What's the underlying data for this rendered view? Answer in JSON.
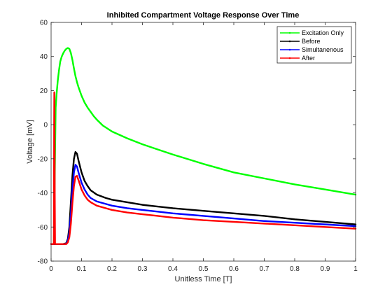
{
  "chart_data": {
    "type": "line",
    "title": "Inhibited Compartment Voltage Response Over Time",
    "xlabel": "Unitless Time [T]",
    "ylabel": "Voltage [mV]",
    "xlim": [
      0,
      1
    ],
    "ylim": [
      -80,
      60
    ],
    "xticks": [
      0,
      0.1,
      0.2,
      0.3,
      0.4,
      0.5,
      0.6,
      0.7,
      0.8,
      0.9,
      1
    ],
    "xtick_labels": [
      "0",
      "0.1",
      "0.2",
      "0.3",
      "0.4",
      "0.5",
      "0.6",
      "0.7",
      "0.8",
      "0.9",
      "1"
    ],
    "yticks": [
      -80,
      -60,
      -40,
      -20,
      0,
      20,
      40,
      60
    ],
    "ytick_labels": [
      "-80",
      "-60",
      "-40",
      "-20",
      "0",
      "20",
      "40",
      "60"
    ],
    "grid": false,
    "legend_position": "top-right",
    "series": [
      {
        "name": "Excitation Only",
        "color": "#00ff00",
        "x": [
          0,
          0.003,
          0.006,
          0.009,
          0.012,
          0.015,
          0.018,
          0.022,
          0.026,
          0.03,
          0.035,
          0.04,
          0.045,
          0.05,
          0.055,
          0.06,
          0.065,
          0.07,
          0.075,
          0.08,
          0.085,
          0.09,
          0.1,
          0.11,
          0.12,
          0.13,
          0.14,
          0.15,
          0.17,
          0.2,
          0.25,
          0.3,
          0.35,
          0.4,
          0.5,
          0.6,
          0.7,
          0.8,
          0.9,
          1.0
        ],
        "y": [
          -70,
          -70,
          -70,
          -70,
          -30,
          10,
          18,
          26,
          32,
          37,
          40,
          42,
          43.5,
          44.5,
          45,
          44.5,
          42,
          38,
          33,
          28.5,
          25,
          22,
          17,
          13,
          10,
          7.5,
          5,
          3,
          -0.5,
          -4,
          -8,
          -11.5,
          -14.5,
          -17.5,
          -23,
          -28,
          -31.5,
          -35,
          -38,
          -41
        ]
      },
      {
        "name": "Before",
        "color": "#000000",
        "x": [
          0,
          0.02,
          0.04,
          0.05,
          0.055,
          0.06,
          0.065,
          0.07,
          0.075,
          0.08,
          0.085,
          0.09,
          0.1,
          0.11,
          0.12,
          0.13,
          0.15,
          0.18,
          0.2,
          0.25,
          0.3,
          0.35,
          0.4,
          0.5,
          0.6,
          0.7,
          0.8,
          0.9,
          1.0
        ],
        "y": [
          -70,
          -70,
          -70,
          -69.5,
          -67,
          -60,
          -45,
          -30,
          -20,
          -16,
          -17,
          -21,
          -28,
          -33,
          -36,
          -38.5,
          -41,
          -43,
          -44,
          -45.5,
          -47,
          -48,
          -49,
          -50.5,
          -52,
          -53.5,
          -55.5,
          -57,
          -58.5
        ]
      },
      {
        "name": "Simultanenous",
        "color": "#0000ff",
        "x": [
          0,
          0.02,
          0.04,
          0.05,
          0.055,
          0.06,
          0.065,
          0.07,
          0.075,
          0.08,
          0.085,
          0.09,
          0.1,
          0.11,
          0.12,
          0.13,
          0.15,
          0.18,
          0.2,
          0.25,
          0.3,
          0.35,
          0.4,
          0.5,
          0.6,
          0.7,
          0.8,
          0.9,
          1.0
        ],
        "y": [
          -70,
          -70,
          -70,
          -69.8,
          -68,
          -63,
          -52,
          -38,
          -28,
          -23.5,
          -24.5,
          -28,
          -34,
          -38,
          -41,
          -43,
          -45,
          -46.5,
          -47.5,
          -49,
          -50,
          -51,
          -52,
          -53.5,
          -55,
          -56.5,
          -57.5,
          -58.5,
          -59.5
        ]
      },
      {
        "name": "After",
        "color": "#ff0000",
        "x": [
          0,
          0.005,
          0.009,
          0.0095,
          0.01,
          0.0105,
          0.011,
          0.012,
          0.013,
          0.05,
          0.055,
          0.06,
          0.065,
          0.07,
          0.075,
          0.08,
          0.085,
          0.09,
          0.1,
          0.11,
          0.12,
          0.13,
          0.15,
          0.18,
          0.2,
          0.25,
          0.3,
          0.35,
          0.4,
          0.5,
          0.6,
          0.7,
          0.8,
          0.9,
          1.0
        ],
        "y": [
          -70,
          -70,
          -70,
          -40,
          0,
          19,
          0,
          -40,
          -70,
          -70,
          -69,
          -66,
          -58,
          -46,
          -36,
          -30.5,
          -30,
          -32.5,
          -38,
          -41.5,
          -44,
          -45.5,
          -47.5,
          -49,
          -50,
          -51.5,
          -52.5,
          -53.5,
          -54.5,
          -56,
          -57,
          -58,
          -59,
          -60,
          -61
        ]
      }
    ]
  }
}
